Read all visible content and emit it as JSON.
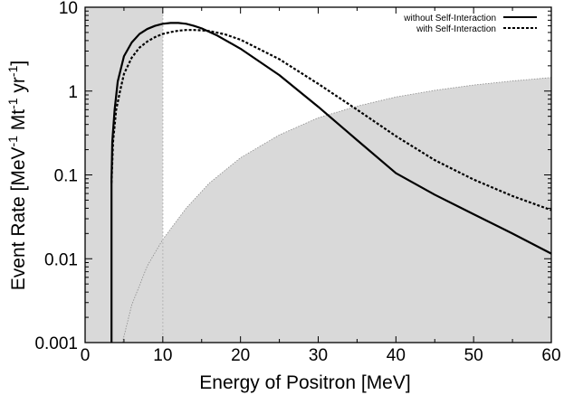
{
  "chart_data": {
    "type": "line",
    "xlabel": "Energy of Positron [MeV]",
    "ylabel_main": "Event Rate [MeV",
    "ylabel_sup1": "-1",
    "ylabel_mid": " Mt",
    "ylabel_sup2": "-1",
    "ylabel_mid2": " yr",
    "ylabel_sup3": "-1",
    "ylabel_end": "]",
    "xlim": [
      0,
      60
    ],
    "ylim": [
      0.001,
      10
    ],
    "yscale": "log",
    "x_ticks": [
      {
        "value": 0,
        "label": "0"
      },
      {
        "value": 10,
        "label": "10"
      },
      {
        "value": 20,
        "label": "20"
      },
      {
        "value": 30,
        "label": "30"
      },
      {
        "value": 40,
        "label": "40"
      },
      {
        "value": 50,
        "label": "50"
      },
      {
        "value": 60,
        "label": "60"
      }
    ],
    "y_ticks": [
      {
        "value": 0.001,
        "label": "0.001"
      },
      {
        "value": 0.01,
        "label": "0.01"
      },
      {
        "value": 0.1,
        "label": "0.1"
      },
      {
        "value": 1,
        "label": "1"
      },
      {
        "value": 10,
        "label": "10"
      }
    ],
    "legend_position": "top-right",
    "shaded_region": {
      "x_from": 0,
      "x_to": 10,
      "color": "#d9d9d9"
    },
    "background_region": {
      "color": "#d9d9d9",
      "x": [
        4.8,
        6,
        8,
        10,
        13,
        16,
        20,
        25,
        30,
        35,
        40,
        45,
        50,
        55,
        60
      ],
      "y": [
        0.001,
        0.0028,
        0.0082,
        0.017,
        0.04,
        0.08,
        0.16,
        0.3,
        0.48,
        0.66,
        0.85,
        1.02,
        1.18,
        1.32,
        1.45
      ]
    },
    "series": [
      {
        "name": "without Self-Interaction",
        "style": "solid",
        "color": "#000000",
        "x": [
          3.4,
          3.4,
          3.5,
          3.8,
          4.2,
          5,
          6,
          7,
          8,
          9,
          10,
          11,
          12,
          13,
          14,
          15,
          17,
          20,
          25,
          30,
          35,
          40,
          45,
          50,
          55,
          60
        ],
        "y": [
          0.001,
          0.09,
          0.25,
          0.6,
          1.3,
          2.6,
          3.8,
          4.8,
          5.5,
          6.0,
          6.35,
          6.5,
          6.5,
          6.35,
          6.0,
          5.6,
          4.6,
          3.2,
          1.55,
          0.65,
          0.26,
          0.105,
          0.058,
          0.034,
          0.02,
          0.0115
        ]
      },
      {
        "name": "with Self-Interaction",
        "style": "dashed",
        "color": "#000000",
        "x": [
          3.4,
          3.6,
          4.0,
          4.5,
          5,
          6,
          7,
          8,
          9,
          10,
          11,
          12,
          13,
          14,
          15,
          16,
          18,
          20,
          25,
          30,
          35,
          40,
          45,
          50,
          55,
          60
        ],
        "y": [
          0.08,
          0.25,
          0.6,
          1.0,
          1.6,
          2.5,
          3.3,
          3.9,
          4.4,
          4.8,
          5.05,
          5.25,
          5.35,
          5.35,
          5.3,
          5.2,
          4.75,
          4.1,
          2.4,
          1.22,
          0.6,
          0.29,
          0.15,
          0.088,
          0.056,
          0.038
        ]
      }
    ]
  }
}
